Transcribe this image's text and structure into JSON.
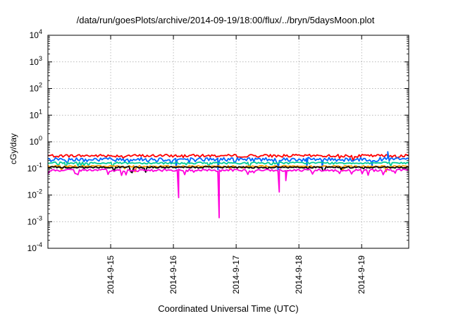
{
  "chart_data": {
    "type": "line",
    "title": "/data/run/goesPlots/archive/2014-09-19/18:00/flux/../bryn/5daysMoon.plot",
    "xlabel": "Coordinated Universal Time (UTC)",
    "ylabel": "cGy/day",
    "x_type": "date",
    "xlim": [
      "2014-09-14 00:00",
      "2014-09-19 18:00"
    ],
    "ylim": [
      0.0001,
      10000
    ],
    "y_scale": "log",
    "grid": true,
    "x_tick_labels": [
      "2014-9-15",
      "2014-9-16",
      "2014-9-17",
      "2014-9-18",
      "2014-9-19"
    ],
    "y_ticks": [
      {
        "base": "10",
        "exp": "-4"
      },
      {
        "base": "10",
        "exp": "-3"
      },
      {
        "base": "10",
        "exp": "-2"
      },
      {
        "base": "10",
        "exp": "-1"
      },
      {
        "base": "10",
        "exp": "0"
      },
      {
        "base": "10",
        "exp": "1"
      },
      {
        "base": "10",
        "exp": "2"
      },
      {
        "base": "10",
        "exp": "3"
      },
      {
        "base": "10",
        "exp": "4"
      }
    ],
    "series": [
      {
        "color": "#ff0000",
        "base": 0.3,
        "noise": 0.12,
        "dips": []
      },
      {
        "color": "#0066ff",
        "base": 0.22,
        "noise": 0.18,
        "dips": [
          [
            "2014-09-16 01:00",
            0.1
          ],
          [
            "2014-09-16 17:00",
            0.09
          ],
          [
            "2014-09-17 16:00",
            0.09
          ],
          [
            "2014-09-18 03:00",
            0.11
          ],
          [
            "2014-09-18 09:00",
            0.1
          ],
          [
            "2014-09-19 04:00",
            0.12
          ]
        ],
        "spikes": [
          [
            "2014-09-19 10:00",
            0.42
          ]
        ]
      },
      {
        "color": "#00cc99",
        "base": 0.16,
        "noise": 0.08,
        "dips": []
      },
      {
        "color": "#ff9900",
        "base": 0.12,
        "noise": 0.07,
        "dips": []
      },
      {
        "color": "#000000",
        "base": 0.11,
        "noise": 0.07,
        "dips": []
      },
      {
        "color": "#ff00dd",
        "base": 0.085,
        "noise": 0.1,
        "dips": [
          [
            "2014-09-16 02:00",
            0.008
          ],
          [
            "2014-09-16 17:30",
            0.0014
          ],
          [
            "2014-09-17 16:30",
            0.013
          ],
          [
            "2014-09-17 19:00",
            0.035
          ]
        ]
      }
    ]
  }
}
